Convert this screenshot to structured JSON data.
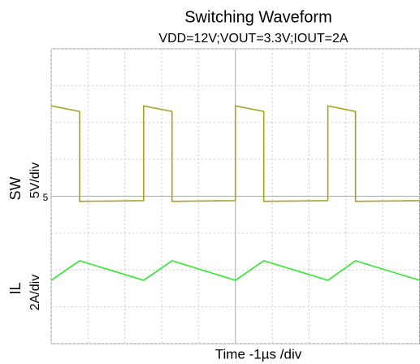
{
  "chart_data": {
    "type": "line",
    "title": "Switching Waveform",
    "subtitle": "VDD=12V;VOUT=3.3V;IOUT=2A",
    "x_label": "Time -1µs /div",
    "channels": [
      {
        "name": "SW",
        "scale": "5V/div"
      },
      {
        "name": "IL",
        "scale": "2A/div"
      }
    ],
    "marker": "5",
    "xlim": [
      0,
      10
    ],
    "ylim": [
      -4,
      4
    ],
    "xticks": [
      0,
      1,
      2,
      3,
      4,
      5,
      6,
      7,
      8,
      9,
      10
    ],
    "yticks": [
      -4,
      -3,
      -2,
      -1,
      0,
      1,
      2,
      3,
      4
    ],
    "grid": true,
    "series": [
      {
        "color": "#a3a324",
        "x": [
          0,
          0.77,
          0.77,
          2.51,
          2.51,
          3.28,
          3.28,
          5.0,
          5.0,
          5.77,
          5.77,
          7.51,
          7.51,
          8.26,
          8.26,
          10
        ],
        "values": [
          2.45,
          2.3,
          -0.14,
          -0.12,
          2.45,
          2.3,
          -0.14,
          -0.12,
          2.45,
          2.3,
          -0.14,
          -0.12,
          2.45,
          2.3,
          -0.14,
          -0.12
        ]
      },
      {
        "color": "#33e833",
        "x": [
          0,
          0.77,
          2.51,
          3.28,
          5.0,
          5.77,
          7.51,
          8.26,
          10
        ],
        "values": [
          -2.28,
          -1.75,
          -2.28,
          -1.75,
          -2.28,
          -1.75,
          -2.28,
          -1.75,
          -2.28
        ]
      }
    ]
  }
}
